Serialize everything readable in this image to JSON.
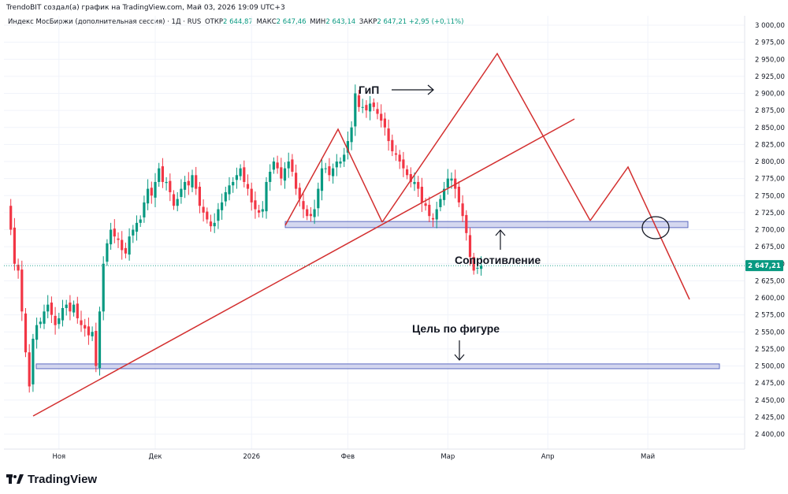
{
  "header": {
    "credit": "TrendoBIT создал(а) график на TradingView.com, Май 03, 2026 19:09 UTC+3",
    "symbol": "Индекс МосБиржи (дополнительная сессия) · 1Д · RUS",
    "open_label": "ОТКР",
    "open_value": "2 644,87",
    "high_label": "МАКС",
    "high_value": "2 647,46",
    "low_label": "МИН",
    "low_value": "2 643,14",
    "close_label": "ЗАКР",
    "close_value": "2 647,21",
    "change": "+2,95 (+0,11%)"
  },
  "footer": {
    "brand": "TradingView"
  },
  "annotations": {
    "hs_label": "ГиП",
    "resistance_label": "Сопротивление",
    "target_label": "Цель по фигуре"
  },
  "colors": {
    "up": "#089981",
    "down": "#f23645",
    "trendline": "#d32f2f",
    "zone_fill": "#c5cae9",
    "zone_stroke": "#5c6bc0",
    "price_tag": "#089981"
  },
  "chart_data": {
    "type": "candlestick",
    "y_ticks": [
      2400,
      2425,
      2450,
      2475,
      2500,
      2525,
      2550,
      2575,
      2600,
      2625,
      2650,
      2675,
      2700,
      2725,
      2750,
      2775,
      2800,
      2825,
      2850,
      2875,
      2900,
      2925,
      2950,
      2975,
      3000
    ],
    "y_tick_labels": [
      "2 400,00",
      "2 425,00",
      "2 450,00",
      "2 475,00",
      "2 500,00",
      "2 525,00",
      "2 550,00",
      "2 575,00",
      "2 600,00",
      "2 625,00",
      "2 650,00",
      "2 675,00",
      "2 700,00",
      "2 725,00",
      "2 750,00",
      "2 775,00",
      "2 800,00",
      "2 825,00",
      "2 850,00",
      "2 875,00",
      "2 900,00",
      "2 925,00",
      "2 950,00",
      "2 975,00",
      "3 000,00"
    ],
    "ylim": [
      2385,
      3010
    ],
    "x_labels": [
      {
        "label": "Ноя",
        "index": 14
      },
      {
        "label": "Дек",
        "index": 40
      },
      {
        "label": "2026",
        "index": 66
      },
      {
        "label": "Фев",
        "index": 92
      },
      {
        "label": "Мар",
        "index": 119
      },
      {
        "label": "Апр",
        "index": 146
      },
      {
        "label": "Май",
        "index": 173
      }
    ],
    "last_price": 2647.21,
    "last_price_label": "2 647,21",
    "closes": [
      2735,
      2700,
      2650,
      2640,
      2580,
      2520,
      2470,
      2540,
      2560,
      2565,
      2580,
      2590,
      2575,
      2560,
      2570,
      2585,
      2590,
      2580,
      2590,
      2570,
      2560,
      2555,
      2545,
      2550,
      2500,
      2580,
      2650,
      2680,
      2700,
      2690,
      2685,
      2670,
      2665,
      2690,
      2700,
      2710,
      2715,
      2740,
      2760,
      2750,
      2770,
      2790,
      2770,
      2770,
      2755,
      2735,
      2745,
      2760,
      2770,
      2765,
      2780,
      2760,
      2735,
      2725,
      2715,
      2705,
      2710,
      2730,
      2740,
      2755,
      2765,
      2770,
      2780,
      2790,
      2770,
      2760,
      2740,
      2730,
      2725,
      2730,
      2770,
      2785,
      2800,
      2790,
      2775,
      2790,
      2800,
      2785,
      2760,
      2745,
      2730,
      2720,
      2720,
      2730,
      2760,
      2790,
      2790,
      2780,
      2790,
      2800,
      2800,
      2810,
      2830,
      2850,
      2900,
      2880,
      2880,
      2875,
      2885,
      2880,
      2870,
      2860,
      2850,
      2830,
      2815,
      2810,
      2800,
      2790,
      2780,
      2770,
      2770,
      2760,
      2740,
      2735,
      2720,
      2715,
      2730,
      2745,
      2760,
      2775,
      2775,
      2760,
      2740,
      2720,
      2695,
      2660,
      2640,
      2644,
      2647
    ],
    "zones": [
      {
        "name": "Сопротивление",
        "from": 2703,
        "to": 2712
      },
      {
        "name": "Цель по фигуре",
        "from": 2496,
        "to": 2503
      }
    ]
  }
}
